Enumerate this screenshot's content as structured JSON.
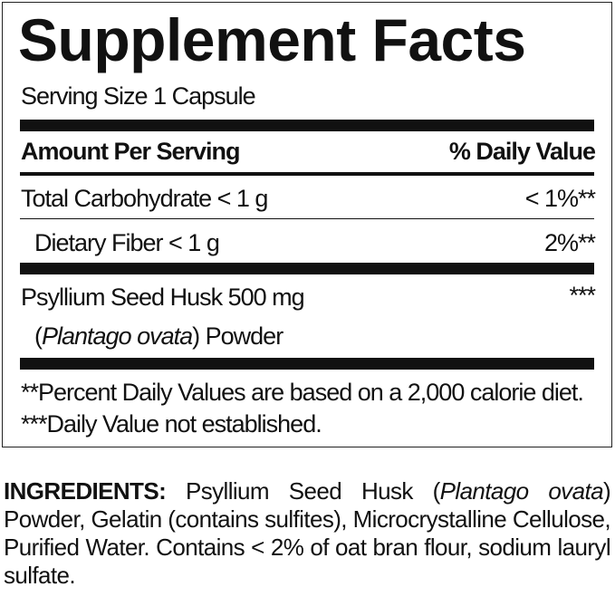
{
  "title": "Supplement Facts",
  "serving_size": "Serving Size 1 Capsule",
  "header": {
    "amount": "Amount Per Serving",
    "dv": "% Daily Value"
  },
  "rows": [
    {
      "label": "Total Carbohydrate < 1 g",
      "dv": "< 1%**"
    },
    {
      "label": "Dietary Fiber < 1 g",
      "dv": "2%**"
    },
    {
      "label": "Psyllium Seed Husk 500 mg",
      "dv": "***",
      "sub_open": "(",
      "sub_italic": "Plantago ovata",
      "sub_rest": ") Powder"
    }
  ],
  "footnotes": [
    "**Percent Daily Values are based on a 2,000 calorie diet.",
    "***Daily Value not established."
  ],
  "ingredients": {
    "label": "INGREDIENTS:",
    "part1": " Psyllium Seed Husk (",
    "italic": "Plantago ovata",
    "part2": ") Powder, Gelatin (contains sulfites), Microcrystalline Cellulose, Purified Water. Contains < 2% of oat bran flour, sodium lauryl sulfate."
  }
}
